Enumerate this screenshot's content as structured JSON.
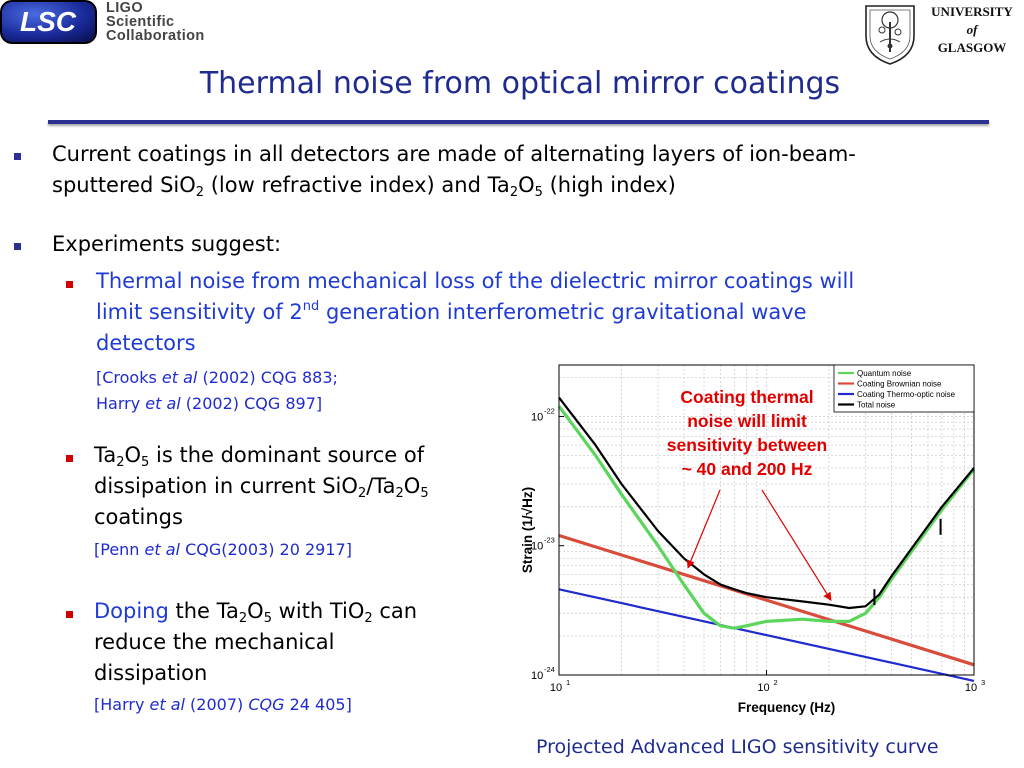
{
  "header": {
    "left_logo_text": "LSC",
    "left_org_lines": [
      "LIGO",
      "Scientific",
      "Collaboration"
    ],
    "right_org_lines": [
      "UNIVERSITY",
      "of",
      "GLASGOW"
    ]
  },
  "title": "Thermal noise from optical mirror coatings",
  "bullets": {
    "b1": {
      "line1": "Current coatings in all detectors are made of alternating layers of ion-beam-",
      "line2_a": "sputtered SiO",
      "line2_sub1": "2",
      "line2_b": " (low refractive index) and Ta",
      "line2_sub2": "2",
      "line2_c": "O",
      "line2_sub3": "5",
      "line2_d": " (high index)"
    },
    "b2": {
      "text": "Experiments suggest:"
    },
    "b2a": {
      "line1": "Thermal noise from mechanical loss of the dielectric mirror coatings will",
      "line2_a": "limit sensitivity of 2",
      "line2_sup": "nd",
      "line2_b": " generation interferometric gravitational wave",
      "line3": "detectors",
      "ref1_a": "[Crooks ",
      "ref1_b": "et al",
      "ref1_c": " (2002) CQG 883;",
      "ref2_a": "Harry ",
      "ref2_b": "et al",
      "ref2_c": " (2002) CQG 897]"
    },
    "b2b": {
      "line1_a": "Ta",
      "line1_sub1": "2",
      "line1_b": "O",
      "line1_sub2": "5",
      "line1_c": " is the dominant source of",
      "line2_a": "dissipation in current SiO",
      "line2_sub1": "2",
      "line2_b": "/Ta",
      "line2_sub2": "2",
      "line2_c": "O",
      "line2_sub3": "5",
      "line3": "coatings",
      "ref_a": "[Penn ",
      "ref_b": "et al",
      "ref_c": " CQG(2003) 20 2917]"
    },
    "b2c": {
      "line1_a": "Doping",
      "line1_b": " the Ta",
      "line1_sub1": "2",
      "line1_c": "O",
      "line1_sub2": "5",
      "line1_d": " with TiO",
      "line1_sub3": "2",
      "line1_e": " can",
      "line2": "reduce the mechanical",
      "line3": "dissipation",
      "ref_a": "[Harry ",
      "ref_b": "et al",
      "ref_c": " (2007) ",
      "ref_d": "CQG",
      "ref_e": " 24 405]"
    }
  },
  "annotation": [
    "Coating thermal",
    "noise will limit",
    "sensitivity between",
    "~ 40 and 200 Hz"
  ],
  "caption": "Projected Advanced LIGO sensitivity curve",
  "colors": {
    "title": "#1f2b8f",
    "accent_blue": "#1f3bd6",
    "annotation_red": "#e00000"
  },
  "chart_data": {
    "type": "line",
    "xlabel": "Frequency (Hz)",
    "ylabel": "Strain (1/√Hz)",
    "xscale": "log",
    "yscale": "log",
    "xlim": [
      10,
      1000
    ],
    "ylim": [
      1e-24,
      2.5e-22
    ],
    "x_ticks": [
      10,
      100,
      1000
    ],
    "x_tick_labels": [
      {
        "base": "10",
        "exp": "1"
      },
      {
        "base": "10",
        "exp": "2"
      },
      {
        "base": "10",
        "exp": "3"
      }
    ],
    "y_ticks": [
      1e-24,
      1e-23,
      1e-22
    ],
    "y_tick_labels": [
      {
        "base": "10",
        "exp": "-24"
      },
      {
        "base": "10",
        "exp": "-23"
      },
      {
        "base": "10",
        "exp": "-22"
      }
    ],
    "grid": true,
    "legend_position": "top-right",
    "series": [
      {
        "name": "Quantum noise",
        "color": "#5bd65b",
        "x": [
          10,
          15,
          20,
          30,
          40,
          50,
          60,
          70,
          80,
          100,
          150,
          200,
          250,
          300,
          350,
          400,
          500,
          700,
          1000
        ],
        "y": [
          1.2e-22,
          5e-23,
          2.5e-23,
          1e-23,
          5e-24,
          3e-24,
          2.4e-24,
          2.3e-24,
          2.4e-24,
          2.6e-24,
          2.7e-24,
          2.6e-24,
          2.6e-24,
          3e-24,
          4e-24,
          5.5e-24,
          9e-24,
          1.9e-23,
          3.9e-23
        ]
      },
      {
        "name": "Coating Brownian noise",
        "color": "#d94c3c",
        "x": [
          10,
          1000
        ],
        "y": [
          1.2e-23,
          1.2e-24
        ]
      },
      {
        "name": "Coating Thermo-optic noise",
        "color": "#1f2bd0",
        "x": [
          10,
          1000
        ],
        "y": [
          4.6e-24,
          9e-25
        ]
      },
      {
        "name": "Total noise",
        "color": "#000000",
        "x": [
          10,
          15,
          20,
          30,
          40,
          50,
          60,
          70,
          80,
          100,
          150,
          200,
          250,
          300,
          350,
          400,
          500,
          700,
          1000
        ],
        "y": [
          1.4e-22,
          6e-23,
          3e-23,
          1.3e-23,
          8e-24,
          6e-24,
          5e-24,
          4.6e-24,
          4.3e-24,
          4e-24,
          3.7e-24,
          3.5e-24,
          3.3e-24,
          3.4e-24,
          4.2e-24,
          5.8e-24,
          9.5e-24,
          2e-23,
          4e-23
        ]
      }
    ]
  }
}
